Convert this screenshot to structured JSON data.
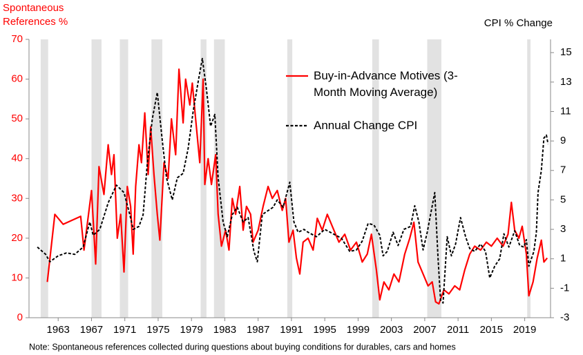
{
  "chart_data": {
    "type": "line",
    "y_label_lines": [
      "Spontaneous",
      "References %"
    ],
    "y2_label": "CPI % Change",
    "note": "Note: Spontaneous references collected during questions about buying conditions for durables, cars and homes",
    "xlim": [
      1959.5,
      2022.1
    ],
    "xticks": [
      1963,
      1967,
      1971,
      1975,
      1979,
      1983,
      1987,
      1991,
      1995,
      1999,
      2003,
      2007,
      2011,
      2015,
      2019
    ],
    "ylim": [
      0,
      70
    ],
    "yticks": [
      0,
      10,
      20,
      30,
      40,
      50,
      60,
      70
    ],
    "y2lim": [
      -3,
      15.9
    ],
    "y2ticks": [
      -3,
      -1,
      1,
      3,
      5,
      7,
      9,
      11,
      13,
      15
    ],
    "grid": false,
    "shade_color": "#e2e2e2",
    "shaded_periods": [
      [
        1960.9,
        1961.8
      ],
      [
        1967.0,
        1968.2
      ],
      [
        1970.4,
        1971.4
      ],
      [
        1974.2,
        1975.5
      ],
      [
        1980.1,
        1980.8
      ],
      [
        1981.7,
        1983.0
      ],
      [
        1990.5,
        1991.1
      ],
      [
        2000.7,
        2001.5
      ],
      [
        2007.3,
        2009.0
      ],
      [
        2019.3,
        2019.7
      ]
    ],
    "series": [
      {
        "name": "Buy-in-Advance Motives (3-Month Moving Average)",
        "color": "#ff0000",
        "dash": false,
        "x": [
          1961.7,
          1962.6,
          1963.6,
          1965.7,
          1966.1,
          1967.0,
          1967.5,
          1967.9,
          1968.5,
          1969.0,
          1969.4,
          1969.7,
          1970.1,
          1970.5,
          1970.9,
          1971.3,
          1971.7,
          1972.0,
          1972.3,
          1972.7,
          1973.0,
          1973.4,
          1973.8,
          1974.1,
          1974.5,
          1974.9,
          1975.2,
          1975.7,
          1976.2,
          1976.6,
          1977.1,
          1977.5,
          1978.0,
          1978.3,
          1978.8,
          1979.1,
          1979.5,
          1980.0,
          1980.4,
          1980.6,
          1981.0,
          1981.4,
          1981.9,
          1982.2,
          1982.6,
          1983.1,
          1983.5,
          1983.9,
          1984.3,
          1984.8,
          1985.2,
          1985.6,
          1986.1,
          1986.4,
          1987.0,
          1987.6,
          1988.2,
          1988.7,
          1989.3,
          1989.9,
          1990.3,
          1990.7,
          1991.2,
          1991.6,
          1992.0,
          1992.4,
          1993.0,
          1993.6,
          1994.1,
          1994.7,
          1995.3,
          1996.1,
          1996.7,
          1997.4,
          1998.1,
          1998.8,
          1999.5,
          2000.1,
          2000.6,
          2001.2,
          2001.6,
          2002.1,
          2002.7,
          2003.3,
          2003.9,
          2004.6,
          2005.2,
          2005.7,
          2006.2,
          2006.8,
          2007.4,
          2007.9,
          2008.3,
          2008.7,
          2009.3,
          2009.9,
          2010.6,
          2011.2,
          2011.8,
          2012.4,
          2013.0,
          2013.7,
          2014.4,
          2015.0,
          2015.7,
          2016.4,
          2017.0,
          2017.4,
          2017.8,
          2018.3,
          2018.7,
          2019.2,
          2019.5,
          2020.0,
          2020.5,
          2021.0,
          2021.3,
          2021.7
        ],
        "values": [
          9,
          26,
          23.5,
          25.5,
          17,
          32,
          13.5,
          38,
          31,
          43.5,
          36,
          41,
          20,
          26,
          11.5,
          33,
          28,
          16,
          33,
          43.5,
          39,
          51.5,
          36,
          48,
          36,
          26,
          19.5,
          39,
          35,
          50,
          41,
          62.5,
          49,
          60,
          53.5,
          59,
          50,
          39,
          60,
          33.5,
          40,
          33.5,
          41,
          26,
          18,
          22,
          17,
          30,
          26,
          33,
          22,
          28,
          26,
          19,
          22,
          28,
          33,
          30,
          32,
          27,
          30,
          19,
          22,
          15,
          11,
          19,
          20,
          17,
          25,
          22,
          26,
          22,
          19,
          21,
          17,
          19,
          14,
          16,
          21,
          12,
          4.5,
          9,
          7,
          11,
          9,
          16,
          20,
          24,
          14,
          11,
          8,
          9,
          4,
          3.5,
          7,
          6,
          8,
          7,
          12,
          16,
          18,
          17,
          19,
          18,
          20,
          18,
          21,
          29,
          22,
          20,
          23,
          16,
          5.5,
          9,
          15,
          19.5,
          14,
          15
        ]
      },
      {
        "name": "Annual Change CPI",
        "color": "#000000",
        "dash": true,
        "axis": "y2",
        "x": [
          1960.5,
          1961.5,
          1962,
          1963,
          1964,
          1965,
          1966,
          1966.8,
          1967.2,
          1968,
          1969,
          1970,
          1970.9,
          1971.6,
          1972,
          1972.7,
          1973.2,
          1973.7,
          1974.3,
          1974.9,
          1975.5,
          1976,
          1976.7,
          1977.3,
          1978,
          1978.6,
          1979.2,
          1979.8,
          1980.3,
          1980.8,
          1981.3,
          1981.8,
          1982.2,
          1982.8,
          1983.3,
          1983.9,
          1984.5,
          1985.2,
          1985.8,
          1986.5,
          1986.9,
          1987.5,
          1988,
          1988.8,
          1989.3,
          1990,
          1990.8,
          1991.3,
          1991.8,
          1992.5,
          1993,
          1994,
          1995,
          1996,
          1997,
          1998,
          1998.8,
          1999.5,
          2000.2,
          2000.9,
          2001.6,
          2002,
          2002.5,
          2003.2,
          2003.8,
          2004.5,
          2005.3,
          2005.8,
          2006.3,
          2006.8,
          2007.3,
          2007.7,
          2008.2,
          2008.6,
          2008.9,
          2009.2,
          2009.7,
          2010.2,
          2010.7,
          2011.3,
          2011.9,
          2012.4,
          2013,
          2013.7,
          2014.3,
          2014.8,
          2015.4,
          2016,
          2016.5,
          2017.1,
          2017.8,
          2018.4,
          2018.9,
          2019.2,
          2019.5,
          2020.1,
          2020.4,
          2020.6,
          2021.0,
          2021.3,
          2021.6,
          2021.8
        ],
        "values": [
          1.8,
          1.3,
          0.8,
          1.2,
          1.4,
          1.3,
          1.8,
          3.5,
          2.6,
          3.0,
          4.8,
          6.0,
          5.5,
          4.0,
          3.0,
          3.2,
          4.0,
          7.5,
          10.5,
          12.3,
          9.0,
          6.5,
          5.0,
          6.5,
          6.8,
          8.5,
          11.0,
          13.0,
          14.6,
          12.5,
          10.0,
          10.8,
          6.5,
          3.5,
          2.5,
          4.0,
          4.5,
          3.5,
          3.8,
          1.5,
          0.8,
          4.0,
          4.2,
          4.5,
          5.0,
          4.5,
          6.2,
          3.5,
          2.8,
          3.0,
          2.8,
          2.5,
          3.0,
          2.7,
          2.4,
          1.5,
          1.6,
          2.2,
          3.4,
          3.3,
          2.6,
          1.2,
          1.5,
          2.8,
          1.9,
          3.0,
          3.2,
          4.6,
          3.5,
          1.6,
          2.8,
          4.0,
          5.5,
          1.0,
          -1.8,
          -2.0,
          2.5,
          1.2,
          2.0,
          3.8,
          2.5,
          1.7,
          1.5,
          2.0,
          1.5,
          -0.3,
          0.5,
          1.0,
          2.7,
          1.8,
          2.9,
          1.9,
          1.8,
          2.3,
          0.5,
          1.5,
          2.8,
          5.5,
          7.0,
          9.2,
          9.4,
          8.8
        ]
      }
    ]
  }
}
